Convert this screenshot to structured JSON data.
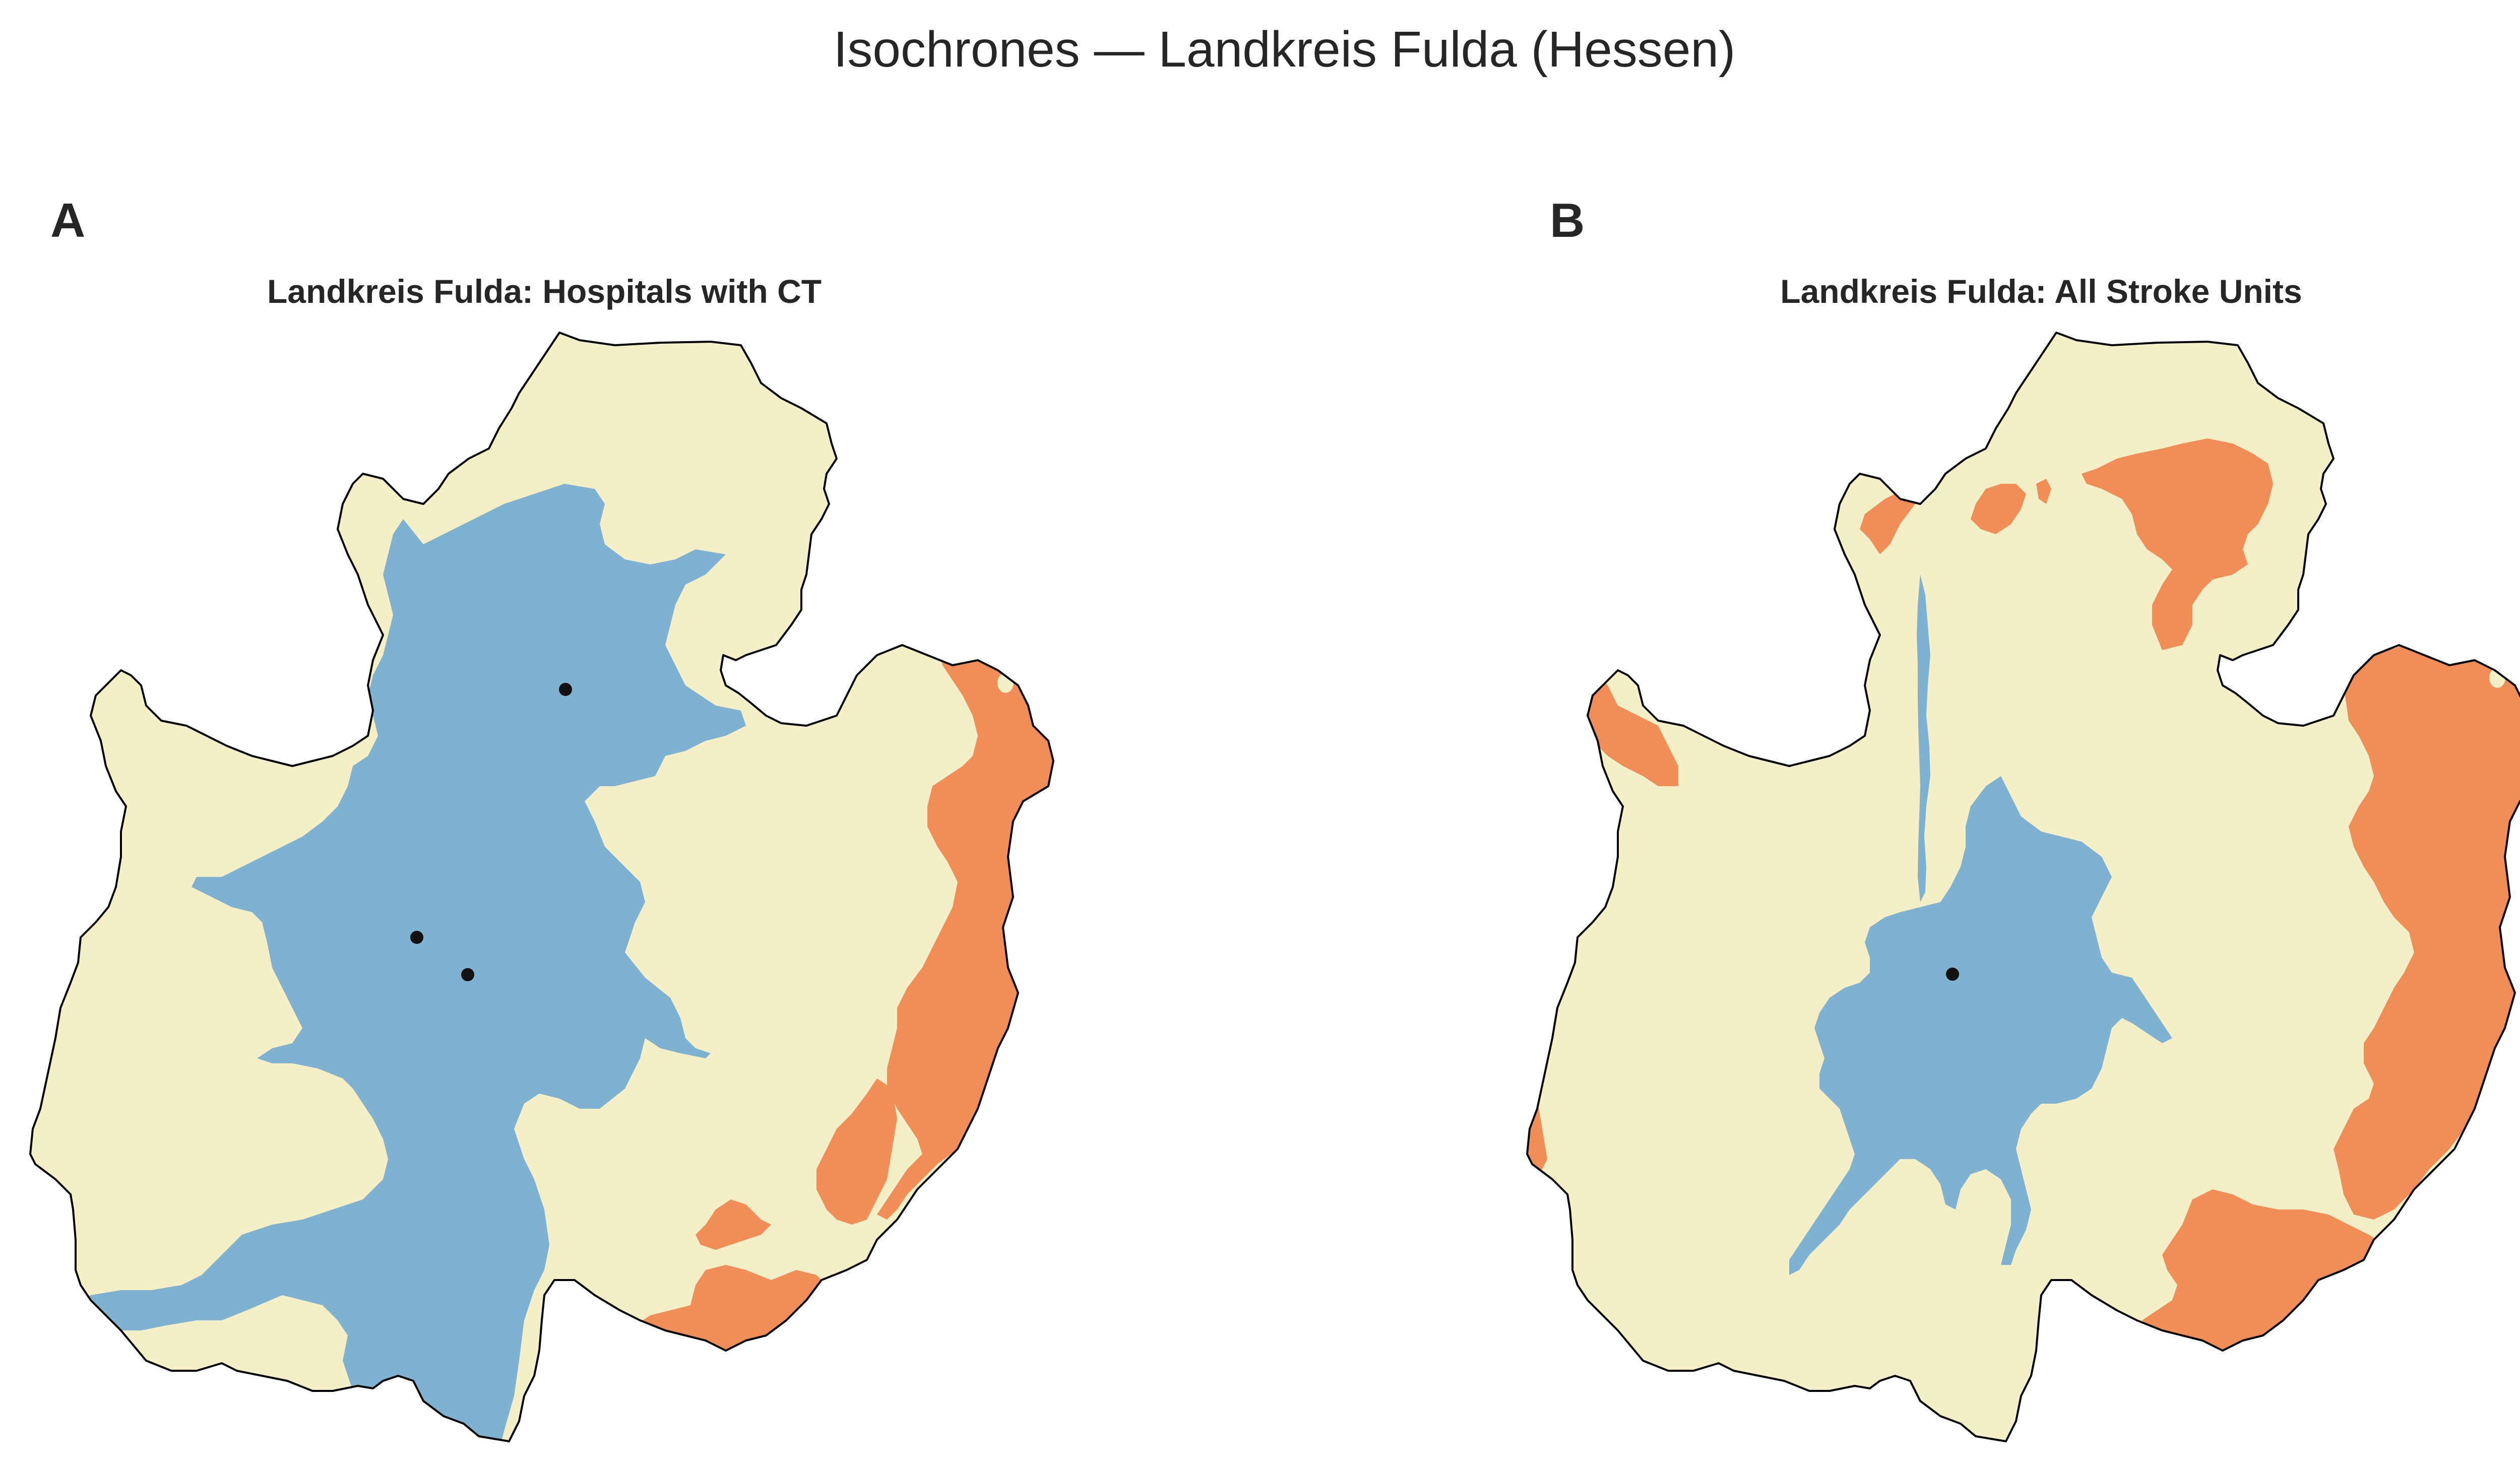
{
  "figure": {
    "title": "Isochrones — Landkreis Fulda (Hessen)"
  },
  "panels": [
    {
      "letter": "A",
      "title": "Landkreis Fulda: Hospitals with CT",
      "marker_count": 3
    },
    {
      "letter": "B",
      "title": "Landkreis Fulda: All Stroke Units",
      "marker_count": 1
    }
  ],
  "colors": {
    "fast_zone": "#7fb1d0",
    "medium_zone": "#f5efc8",
    "slow_zone": "#f18d56",
    "boundary": "#000000",
    "marker": "#111111"
  }
}
